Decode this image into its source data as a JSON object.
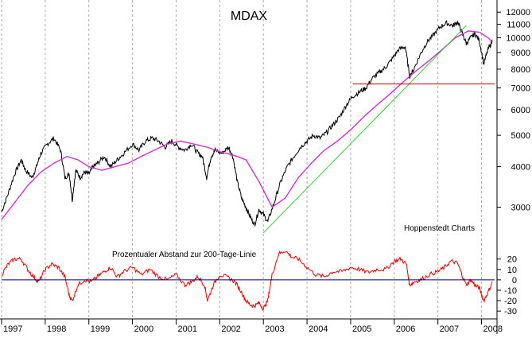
{
  "chart_data": [
    {
      "type": "line",
      "title": "MDAX",
      "y_scale": "log",
      "ylim": [
        2400,
        12500
      ],
      "yticks": [
        3000,
        4000,
        5000,
        6000,
        7000,
        8000,
        9000,
        10000,
        11000,
        12000
      ],
      "ytick_labels": [
        "3000",
        "4000",
        "5000",
        "6000",
        "7000",
        "8000",
        "9000",
        "10000",
        "11000",
        "12000"
      ],
      "x_tick_labels": [
        "1997",
        "1998",
        "1999",
        "2000",
        "2001",
        "2002",
        "2003",
        "2004",
        "2005",
        "2006",
        "2007",
        "2008"
      ],
      "xlim": [
        1997.0,
        2008.3
      ],
      "annotation": "Hoppenstedt Charts",
      "grid": "vertical dashed",
      "colors": {
        "price": "#000000",
        "ma200": "#cc33cc",
        "trend": "#33cc33",
        "support": "#cc0000"
      },
      "series": [
        {
          "key": "price",
          "x": [
            1997.0,
            1997.15,
            1997.3,
            1997.45,
            1997.55,
            1997.7,
            1997.8,
            1997.9,
            1998.05,
            1998.2,
            1998.35,
            1998.45,
            1998.55,
            1998.62,
            1998.7,
            1998.8,
            1998.9,
            1999.0,
            1999.1,
            1999.2,
            1999.35,
            1999.5,
            1999.65,
            1999.8,
            2000.0,
            2000.15,
            2000.3,
            2000.45,
            2000.6,
            2000.75,
            2000.9,
            2001.05,
            2001.2,
            2001.35,
            2001.5,
            2001.6,
            2001.7,
            2001.8,
            2001.9,
            2002.05,
            2002.2,
            2002.3,
            2002.4,
            2002.5,
            2002.6,
            2002.7,
            2002.8,
            2002.9,
            2003.0,
            2003.1,
            2003.25,
            2003.4,
            2003.55,
            2003.7,
            2003.85,
            2004.0,
            2004.15,
            2004.3,
            2004.45,
            2004.6,
            2004.75,
            2004.9,
            2005.05,
            2005.2,
            2005.35,
            2005.5,
            2005.65,
            2005.8,
            2005.95,
            2006.1,
            2006.25,
            2006.35,
            2006.45,
            2006.6,
            2006.75,
            2006.9,
            2007.05,
            2007.2,
            2007.35,
            2007.45,
            2007.55,
            2007.65,
            2007.75,
            2007.85,
            2007.95,
            2008.05,
            2008.15,
            2008.25
          ],
          "values": [
            2900,
            3300,
            3800,
            4200,
            3900,
            3700,
            4000,
            4400,
            4700,
            4900,
            4500,
            3700,
            3800,
            3150,
            3900,
            3700,
            3850,
            3800,
            4000,
            4100,
            4300,
            4000,
            4200,
            4400,
            4700,
            4500,
            4800,
            4900,
            4800,
            4600,
            4800,
            4600,
            4500,
            4700,
            4400,
            4300,
            3700,
            4300,
            4500,
            4400,
            4600,
            4300,
            3600,
            3200,
            3000,
            2800,
            2650,
            2950,
            2850,
            2700,
            3100,
            3600,
            4000,
            4300,
            4600,
            4800,
            5000,
            4900,
            5100,
            5400,
            5700,
            6200,
            6600,
            6800,
            7000,
            7500,
            7800,
            8100,
            8600,
            9200,
            9400,
            7600,
            8000,
            8900,
            9700,
            10200,
            10800,
            11100,
            10900,
            11200,
            10400,
            9600,
            10000,
            10300,
            9800,
            8300,
            9200,
            9800
          ]
        },
        {
          "key": "ma200",
          "x": [
            1997.0,
            1997.3,
            1997.6,
            1997.9,
            1998.2,
            1998.5,
            1998.75,
            1999.0,
            1999.3,
            1999.6,
            1999.9,
            2000.2,
            2000.5,
            2000.8,
            2001.1,
            2001.4,
            2001.7,
            2002.0,
            2002.3,
            2002.6,
            2002.9,
            2003.2,
            2003.5,
            2003.8,
            2004.1,
            2004.4,
            2004.7,
            2005.0,
            2005.3,
            2005.6,
            2005.9,
            2006.2,
            2006.5,
            2006.8,
            2007.1,
            2007.4,
            2007.7,
            2007.95,
            2008.15,
            2008.25
          ],
          "values": [
            2750,
            3100,
            3500,
            3850,
            4100,
            4300,
            4200,
            4000,
            3900,
            4000,
            4100,
            4300,
            4500,
            4700,
            4800,
            4700,
            4600,
            4450,
            4350,
            4200,
            3600,
            3000,
            3200,
            3700,
            4100,
            4500,
            4800,
            5200,
            5700,
            6200,
            6700,
            7300,
            7900,
            8500,
            9200,
            10000,
            10500,
            10400,
            10000,
            9700
          ]
        },
        {
          "key": "trend",
          "x": [
            2003.0,
            2007.65
          ],
          "values": [
            2500,
            10900
          ]
        },
        {
          "key": "support",
          "x": [
            2005.05,
            2008.3
          ],
          "values": [
            7200,
            7200
          ]
        }
      ]
    },
    {
      "type": "line",
      "title": "Prozentualer Abstand zur 200-Tage-Linie",
      "ylim": [
        -36,
        32
      ],
      "yticks": [
        -30,
        -20,
        -10,
        0,
        10,
        20
      ],
      "ytick_labels": [
        "-30",
        "-20",
        "-10",
        "0",
        "10",
        "20"
      ],
      "colors": {
        "deviation": "#dd0000",
        "zero": "#000066"
      },
      "series": [
        {
          "key": "deviation",
          "x": [
            1997.0,
            1997.15,
            1997.3,
            1997.45,
            1997.6,
            1997.75,
            1997.85,
            1998.0,
            1998.15,
            1998.3,
            1998.45,
            1998.55,
            1998.62,
            1998.75,
            1998.9,
            1999.05,
            1999.2,
            1999.35,
            1999.5,
            1999.65,
            1999.8,
            2000.0,
            2000.2,
            2000.4,
            2000.6,
            2000.8,
            2001.0,
            2001.2,
            2001.35,
            2001.5,
            2001.65,
            2001.72,
            2001.85,
            2002.0,
            2002.2,
            2002.35,
            2002.5,
            2002.6,
            2002.7,
            2002.8,
            2002.9,
            2003.0,
            2003.1,
            2003.2,
            2003.35,
            2003.5,
            2003.65,
            2003.8,
            2004.0,
            2004.2,
            2004.4,
            2004.6,
            2004.8,
            2005.0,
            2005.2,
            2005.4,
            2005.6,
            2005.8,
            2006.0,
            2006.15,
            2006.28,
            2006.35,
            2006.45,
            2006.6,
            2006.8,
            2007.0,
            2007.15,
            2007.3,
            2007.45,
            2007.55,
            2007.65,
            2007.75,
            2007.85,
            2007.95,
            2008.05,
            2008.15,
            2008.25
          ],
          "values": [
            5,
            15,
            20,
            20,
            10,
            2,
            -2,
            10,
            15,
            12,
            3,
            -15,
            -20,
            -5,
            0,
            -2,
            3,
            8,
            12,
            3,
            8,
            12,
            5,
            10,
            3,
            0,
            5,
            -5,
            -2,
            3,
            -5,
            -20,
            -5,
            5,
            2,
            -2,
            -12,
            -20,
            -24,
            -25,
            -22,
            -28,
            -20,
            5,
            25,
            28,
            22,
            20,
            12,
            5,
            3,
            8,
            8,
            12,
            10,
            7,
            10,
            10,
            18,
            20,
            15,
            -5,
            -2,
            0,
            5,
            8,
            12,
            18,
            16,
            5,
            -5,
            0,
            -5,
            -8,
            -20,
            -12,
            -2
          ]
        },
        {
          "key": "zero",
          "x": [
            1997.0,
            2008.3
          ],
          "values": [
            0,
            0
          ]
        }
      ]
    }
  ]
}
